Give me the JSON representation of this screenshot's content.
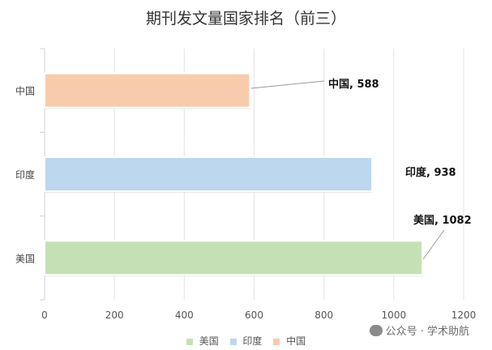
{
  "chart_data": {
    "type": "bar",
    "orientation": "horizontal",
    "title": "期刊发文量国家排名（前三）",
    "categories": [
      "中国",
      "印度",
      "美国"
    ],
    "values": [
      588,
      938,
      1082
    ],
    "data_labels": [
      "中国, 588",
      "印度, 938",
      "美国, 1082"
    ],
    "xlim": [
      0,
      1200
    ],
    "xticks": [
      "0",
      "200",
      "400",
      "600",
      "800",
      "1000",
      "1200"
    ],
    "grid": "vertical",
    "colors": [
      "#f8cbad",
      "#bdd7ee",
      "#c5e0b4"
    ],
    "legend": {
      "position": "bottom",
      "entries": [
        {
          "label": "美国",
          "color": "#c5e0b4"
        },
        {
          "label": "印度",
          "color": "#bdd7ee"
        },
        {
          "label": "中国",
          "color": "#f8cbad"
        }
      ]
    }
  },
  "watermark": "公众号 · 学术助航"
}
